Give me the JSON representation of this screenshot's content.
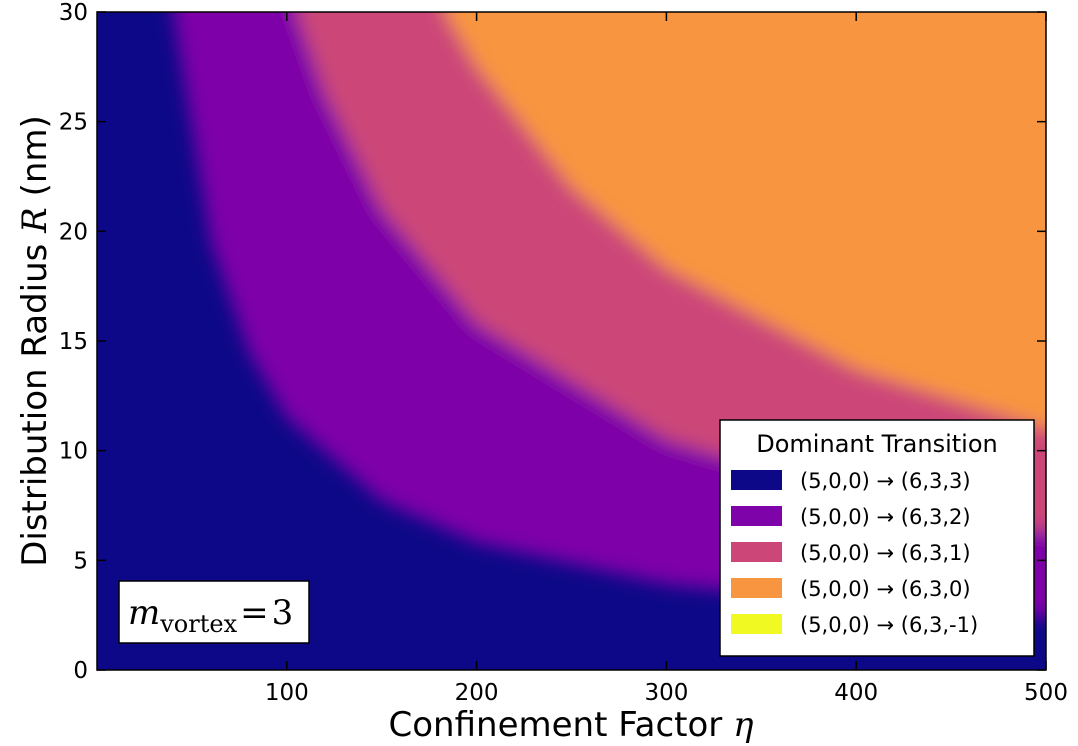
{
  "chart_data": {
    "type": "heatmap",
    "xlabel": "Confinement Factor",
    "xlabel_symbol": "η",
    "ylabel": "Distribution Radius",
    "ylabel_symbol": "R",
    "ylabel_unit": "(nm)",
    "xlim": [
      0,
      500
    ],
    "ylim": [
      0,
      30
    ],
    "x_ticks": [
      100,
      200,
      300,
      400,
      500
    ],
    "x_tick_labels": [
      "100",
      "200",
      "300",
      "400",
      "500"
    ],
    "y_ticks": [
      0,
      5,
      10,
      15,
      20,
      25,
      30
    ],
    "y_tick_labels": [
      "0",
      "5",
      "10",
      "15",
      "20",
      "25",
      "30"
    ],
    "grid": false,
    "annotation": {
      "symbol": "m",
      "subscript": "vortex",
      "equals": "=",
      "value": "3"
    },
    "legend": {
      "title": "Dominant Transition",
      "placement": "lower-right",
      "entries": [
        {
          "label": "(5,0,0) → (6,3,3)",
          "color": "#0d0887"
        },
        {
          "label": "(5,0,0) → (6,3,2)",
          "color": "#7e03a8"
        },
        {
          "label": "(5,0,0) → (6,3,1)",
          "color": "#cc4778"
        },
        {
          "label": "(5,0,0) → (6,3,0)",
          "color": "#f89540"
        },
        {
          "label": "(5,0,0) → (6,3,-1)",
          "color": "#f0f921"
        }
      ]
    },
    "region_boundaries": [
      {
        "between": "(6,3,3) | (6,3,2)",
        "x": [
          40,
          60,
          80,
          100,
          150,
          200,
          300,
          400,
          500
        ],
        "y": [
          30,
          19.5,
          14.5,
          11.5,
          7.7,
          5.8,
          3.9,
          3.0,
          2.4
        ]
      },
      {
        "between": "(6,3,2) | (6,3,1)",
        "x": [
          105,
          120,
          150,
          200,
          300,
          400,
          500
        ],
        "y": [
          30,
          26.3,
          21.0,
          15.8,
          10.5,
          7.9,
          6.3
        ]
      },
      {
        "between": "(6,3,1) | (6,3,0)",
        "x": [
          183,
          200,
          250,
          300,
          400,
          500
        ],
        "y": [
          30,
          27.5,
          22.0,
          18.3,
          13.7,
          11.0
        ]
      }
    ]
  }
}
